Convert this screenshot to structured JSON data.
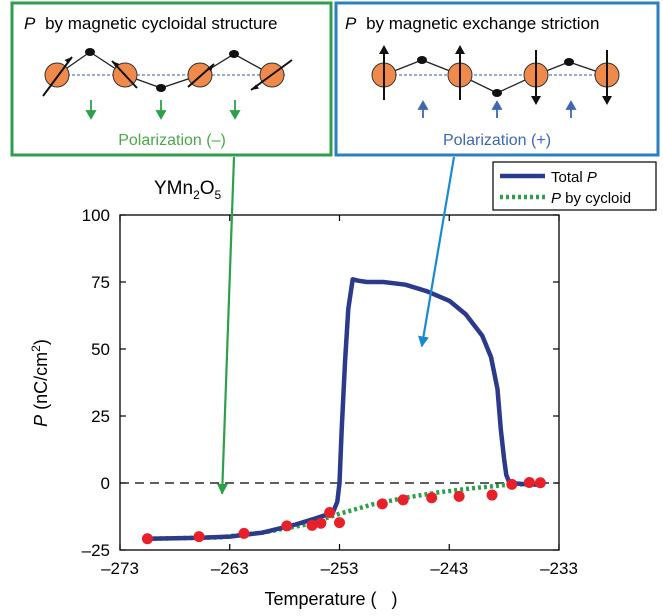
{
  "panels": {
    "left": {
      "symbol": "P",
      "title": "by magnetic cycloidal structure",
      "polarization": "Polarization (–)",
      "border_color": "#2e9e4e",
      "text_color": "#4aa84a"
    },
    "right": {
      "symbol": "P",
      "title": "by magnetic exchange striction",
      "polarization": "Polarization (+)",
      "border_color": "#2a7fc0",
      "text_color": "#3d68b0"
    }
  },
  "chart_data": {
    "type": "line",
    "compound": {
      "base": "YMn",
      "sub1": "2",
      "mid": "O",
      "sub2": "5"
    },
    "xlabel": "Temperature (   )",
    "ylabel": {
      "symbol": "P",
      "text": " (nC/cm",
      "sup": "2",
      "close": ")"
    },
    "xlim": [
      -273,
      -233
    ],
    "ylim": [
      -25,
      100
    ],
    "xticks": [
      -273,
      -263,
      -253,
      -243,
      -233
    ],
    "yticks": [
      100,
      75,
      50,
      25,
      0,
      -25
    ],
    "xtick_labels": [
      "–273",
      "–263",
      "–253",
      "–243",
      "–233"
    ],
    "ytick_labels": [
      "100",
      "75",
      "50",
      "25",
      "0",
      "–25"
    ],
    "legend": {
      "placement": "top-right",
      "entries": [
        {
          "symbol": "Total",
          "italic": "P",
          "style": "solid"
        },
        {
          "symbol": "",
          "italic": "P",
          "text": " by cycloid",
          "style": "dotted"
        }
      ]
    },
    "series": [
      {
        "name": "Total P",
        "color": "#2c3a8c",
        "points": [
          [
            -270.5,
            -20.8
          ],
          [
            -266,
            -20.5
          ],
          [
            -263,
            -20.0
          ],
          [
            -260,
            -18.5
          ],
          [
            -257,
            -15.5
          ],
          [
            -255,
            -13.0
          ],
          [
            -253.6,
            -11.0
          ],
          [
            -253.2,
            -7.0
          ],
          [
            -253.0,
            0
          ],
          [
            -252.8,
            20
          ],
          [
            -252.5,
            45
          ],
          [
            -252.2,
            65
          ],
          [
            -251.8,
            76
          ],
          [
            -251.3,
            75.5
          ],
          [
            -250.5,
            75
          ],
          [
            -249,
            75
          ],
          [
            -247,
            74
          ],
          [
            -245,
            71.5
          ],
          [
            -243,
            68
          ],
          [
            -241.5,
            63
          ],
          [
            -240,
            55
          ],
          [
            -239.2,
            47
          ],
          [
            -238.6,
            35
          ],
          [
            -238.3,
            20
          ],
          [
            -238.0,
            9
          ],
          [
            -237.8,
            3
          ],
          [
            -237.5,
            0
          ],
          [
            -236,
            -0.5
          ],
          [
            -234.5,
            -0.7
          ]
        ]
      },
      {
        "name": "P by cycloid",
        "color": "#2ea04a",
        "points": [
          [
            -270.5,
            -20.8
          ],
          [
            -264,
            -20.3
          ],
          [
            -260,
            -18.5
          ],
          [
            -256,
            -15.5
          ],
          [
            -253,
            -11.5
          ],
          [
            -250,
            -8.0
          ],
          [
            -247,
            -5.5
          ],
          [
            -244,
            -3.5
          ],
          [
            -241,
            -2.0
          ],
          [
            -238,
            -0.8
          ],
          [
            -236,
            -0.4
          ],
          [
            -234.5,
            -0.5
          ]
        ]
      },
      {
        "name": "data points",
        "color": "#e8202a",
        "points": [
          [
            -270.5,
            -20.8
          ],
          [
            -265.8,
            -20.0
          ],
          [
            -261.7,
            -18.8
          ],
          [
            -257.8,
            -16.0
          ],
          [
            -255.5,
            -15.8
          ],
          [
            -254.7,
            -15.0
          ],
          [
            -253.9,
            -11.0
          ],
          [
            -253.0,
            -14.8
          ],
          [
            -249.1,
            -7.8
          ],
          [
            -247.2,
            -6.3
          ],
          [
            -244.6,
            -5.5
          ],
          [
            -242.1,
            -5.0
          ],
          [
            -239.1,
            -4.5
          ],
          [
            -237.3,
            -0.5
          ],
          [
            -235.7,
            0.2
          ],
          [
            -234.7,
            0.1
          ]
        ]
      }
    ],
    "reference_line": {
      "y": 0,
      "style": "dashed"
    },
    "annotations": [
      {
        "from_panel": "left",
        "color": "#2ea04a",
        "target": [
          -263.7,
          -4
        ]
      },
      {
        "from_panel": "right",
        "color": "#1a8ad0",
        "target": [
          -245.5,
          51
        ]
      }
    ]
  }
}
